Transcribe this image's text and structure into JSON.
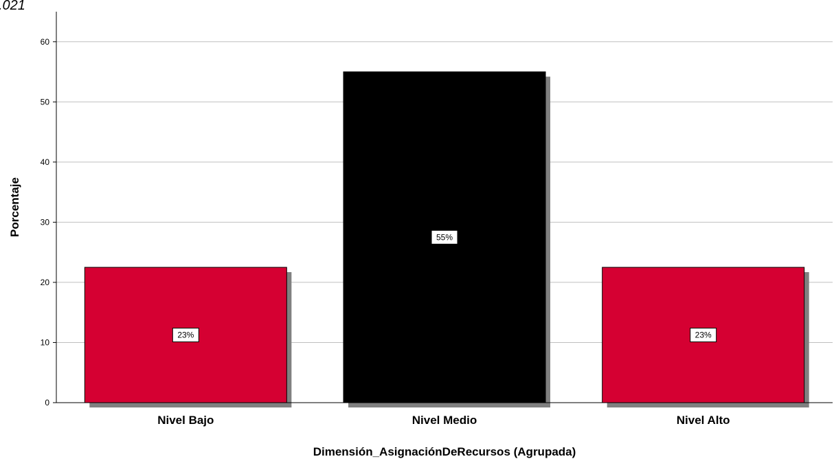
{
  "corner_text": ".021",
  "chart_data": {
    "type": "bar",
    "categories": [
      "Nivel Bajo",
      "Nivel Medio",
      "Nivel Alto"
    ],
    "values": [
      22.5,
      55,
      22.5
    ],
    "data_labels": [
      "23%",
      "55%",
      "23%"
    ],
    "bar_colors": [
      "#d50032",
      "#000000",
      "#d50032"
    ],
    "xlabel": "Dimensión_AsignaciónDeRecursos (Agrupada)",
    "ylabel": "Porcentaje",
    "ylim": [
      0,
      65
    ],
    "yticks": [
      0,
      10,
      20,
      30,
      40,
      50,
      60
    ],
    "grid": true,
    "colors": {
      "gridline": "#bfbfbf",
      "shadow": "#808080",
      "axis": "#000000"
    }
  }
}
